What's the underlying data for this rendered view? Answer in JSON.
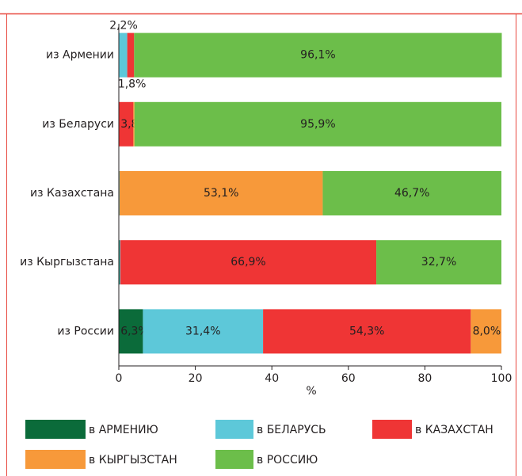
{
  "chart_data": {
    "type": "stacked-bar-horizontal",
    "categories": [
      "из Армении",
      "из Беларуси",
      "из Казахстана",
      "из Кыргызстана",
      "из России"
    ],
    "series": [
      {
        "name": "в АРМЕНИЮ",
        "color": "#0b6b3a",
        "values": [
          0,
          0,
          0.1,
          0.2,
          6.3
        ],
        "value_labels": [
          null,
          null,
          null,
          null,
          "6,3%"
        ]
      },
      {
        "name": "в БЕЛАРУСЬ",
        "color": "#5dc8d9",
        "values": [
          2.2,
          0,
          0.1,
          0.2,
          31.4
        ],
        "value_labels": [
          "2,2%",
          null,
          null,
          null,
          "31,4%"
        ]
      },
      {
        "name": "в КАЗАХСТАН",
        "color": "#ef3535",
        "values": [
          1.8,
          3.8,
          0,
          66.9,
          54.3
        ],
        "value_labels": [
          "1,8%",
          "3,8%",
          null,
          "66,9%",
          "54,3%"
        ]
      },
      {
        "name": "в КЫРГЫЗСТАН",
        "color": "#f7993a",
        "values": [
          0,
          0.3,
          53.1,
          0,
          8.0
        ],
        "value_labels": [
          null,
          null,
          "53,1%",
          null,
          "8,0%"
        ]
      },
      {
        "name": "в РОССИЮ",
        "color": "#6cbe4a",
        "values": [
          96.1,
          95.9,
          46.7,
          32.7,
          0
        ],
        "value_labels": [
          "96,1%",
          "95,9%",
          "46,7%",
          "32,7%",
          null
        ]
      }
    ],
    "xlabel": "%",
    "xlim": [
      0,
      100
    ],
    "xticks": [
      0,
      20,
      40,
      60,
      80,
      100
    ]
  }
}
